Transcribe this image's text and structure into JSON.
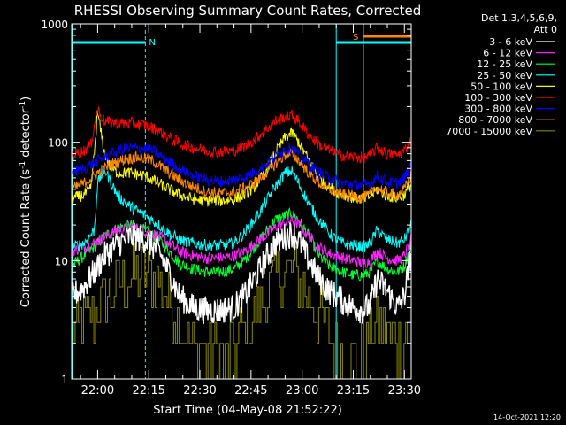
{
  "chart_data": {
    "type": "line",
    "title": "RHESSI Observing Summary Count Rates, Corrected",
    "xlabel": "Start Time (04-May-08 21:52:22)",
    "ylabel": "Corrected Count Rate (s⁻¹ detector⁻¹)",
    "ylabel_main": "Corrected Count Rate (s",
    "ylabel_sup1": "-1",
    "ylabel_mid": " detector",
    "ylabel_sup2": "-1",
    "ylabel_end": ")",
    "x_start_min": 1312.37,
    "x_end_min": 1412.0,
    "x_ticks": [
      {
        "min": 1320,
        "label": "22:00"
      },
      {
        "min": 1335,
        "label": "22:15"
      },
      {
        "min": 1350,
        "label": "22:30"
      },
      {
        "min": 1365,
        "label": "22:45"
      },
      {
        "min": 1380,
        "label": "23:00"
      },
      {
        "min": 1395,
        "label": "23:15"
      },
      {
        "min": 1410,
        "label": "23:30"
      }
    ],
    "y_scale": "log",
    "ylim": [
      1,
      1000
    ],
    "y_ticks": [
      {
        "v": 1,
        "label": "1"
      },
      {
        "v": 10,
        "label": "10"
      },
      {
        "v": 100,
        "label": "100"
      },
      {
        "v": 1000,
        "label": "1000"
      }
    ],
    "legend_header_1": "Det 1,3,4,5,6,9,",
    "legend_header_2": "Att 0",
    "legend_position": "right",
    "series": [
      {
        "name": "3 - 6 keV",
        "color": "#ffffff",
        "x": [
          1312.4,
          1316,
          1319,
          1322,
          1326,
          1330,
          1334,
          1338,
          1341,
          1344,
          1348,
          1352,
          1356,
          1360,
          1363,
          1366,
          1369,
          1372,
          1375,
          1377,
          1379,
          1382,
          1385,
          1388,
          1390,
          1392,
          1395,
          1398,
          1400,
          1402,
          1405,
          1408,
          1410,
          1412
        ],
        "values": [
          5,
          6,
          8,
          11,
          14,
          16,
          15,
          12,
          8,
          5,
          4,
          3.8,
          3.8,
          4,
          5,
          7,
          10,
          14,
          16,
          17,
          15,
          10,
          7,
          5.5,
          5,
          4.5,
          4,
          3.8,
          4.2,
          7,
          5.5,
          4,
          5,
          12
        ]
      },
      {
        "name": "6 - 12 keV",
        "color": "#ff22ff",
        "x": [
          1312.4,
          1316,
          1319,
          1322,
          1326,
          1330,
          1334,
          1338,
          1341,
          1344,
          1348,
          1352,
          1356,
          1360,
          1363,
          1366,
          1369,
          1372,
          1375,
          1377,
          1379,
          1382,
          1385,
          1388,
          1390,
          1392,
          1395,
          1398,
          1400,
          1402,
          1405,
          1408,
          1410,
          1412
        ],
        "values": [
          12,
          13,
          14,
          16,
          18,
          19,
          18,
          16,
          14,
          12,
          11,
          10.5,
          10.5,
          11,
          12,
          14,
          16,
          19,
          21,
          22,
          20,
          16,
          13,
          11.5,
          11,
          10.5,
          10,
          9.5,
          10,
          12,
          10.5,
          10,
          11,
          15
        ]
      },
      {
        "name": "12 - 25 keV",
        "color": "#00ff33",
        "x": [
          1312.4,
          1316,
          1319,
          1322,
          1326,
          1330,
          1334,
          1338,
          1341,
          1344,
          1348,
          1352,
          1356,
          1360,
          1363,
          1366,
          1369,
          1372,
          1375,
          1377,
          1379,
          1382,
          1385,
          1388,
          1390,
          1392,
          1395,
          1398,
          1400,
          1402,
          1405,
          1408,
          1410,
          1412
        ],
        "values": [
          9,
          11,
          13,
          16,
          19,
          20,
          18,
          15,
          12,
          9.5,
          8.5,
          8,
          8,
          8.5,
          10,
          13,
          17,
          22,
          24,
          25,
          22,
          16,
          11,
          9,
          8.5,
          8,
          7.5,
          7.5,
          8,
          10,
          8.5,
          8,
          9,
          14
        ]
      },
      {
        "name": "25 - 50 keV",
        "color": "#00ffff",
        "x": [
          1312.4,
          1316,
          1319,
          1320,
          1322,
          1324,
          1326,
          1330,
          1334,
          1338,
          1341,
          1344,
          1348,
          1352,
          1356,
          1360,
          1363,
          1366,
          1369,
          1372,
          1375,
          1377,
          1379,
          1382,
          1385,
          1388,
          1390,
          1392,
          1395,
          1398,
          1400,
          1402,
          1405,
          1408,
          1410,
          1412
        ],
        "values": [
          13,
          14,
          18,
          45,
          60,
          45,
          35,
          28,
          24,
          20,
          17,
          15,
          14,
          13.5,
          13.5,
          14,
          17,
          22,
          30,
          42,
          55,
          57,
          45,
          30,
          22,
          17,
          15,
          14,
          13.5,
          13,
          14,
          18,
          15,
          14,
          15,
          20
        ]
      },
      {
        "name": "50 - 100 keV",
        "color": "#ffff00",
        "x": [
          1312.4,
          1316,
          1318,
          1319,
          1320,
          1321,
          1322,
          1324,
          1326,
          1330,
          1334,
          1338,
          1341,
          1344,
          1348,
          1352,
          1356,
          1360,
          1363,
          1366,
          1369,
          1372,
          1375,
          1377,
          1379,
          1382,
          1385,
          1388,
          1390,
          1392,
          1395,
          1398,
          1400,
          1402,
          1405,
          1408,
          1410,
          1412
        ],
        "values": [
          33,
          36,
          40,
          80,
          180,
          120,
          80,
          60,
          55,
          55,
          52,
          45,
          40,
          36,
          33,
          32,
          32,
          33,
          36,
          42,
          55,
          80,
          110,
          120,
          100,
          70,
          50,
          42,
          38,
          36,
          34,
          33,
          35,
          40,
          35,
          34,
          36,
          45
        ]
      },
      {
        "name": "100 - 300 keV",
        "color": "#ff0000",
        "x": [
          1312.4,
          1316,
          1318,
          1319,
          1320,
          1322,
          1326,
          1330,
          1334,
          1338,
          1341,
          1344,
          1348,
          1352,
          1356,
          1360,
          1363,
          1366,
          1369,
          1372,
          1375,
          1377,
          1379,
          1382,
          1385,
          1388,
          1390,
          1392,
          1395,
          1398,
          1400,
          1402,
          1405,
          1408,
          1410,
          1412
        ],
        "values": [
          78,
          85,
          95,
          140,
          190,
          150,
          145,
          145,
          140,
          125,
          110,
          98,
          90,
          85,
          83,
          85,
          92,
          105,
          125,
          150,
          165,
          168,
          150,
          115,
          95,
          85,
          80,
          77,
          75,
          74,
          78,
          90,
          80,
          78,
          85,
          105
        ]
      },
      {
        "name": "300 - 800 keV",
        "color": "#0000ff",
        "x": [
          1312.4,
          1316,
          1320,
          1324,
          1328,
          1332,
          1336,
          1340,
          1344,
          1348,
          1352,
          1356,
          1360,
          1364,
          1368,
          1372,
          1375,
          1377,
          1379,
          1382,
          1385,
          1388,
          1390,
          1392,
          1395,
          1398,
          1400,
          1402,
          1405,
          1408,
          1410,
          1412
        ],
        "values": [
          55,
          60,
          70,
          80,
          88,
          90,
          85,
          72,
          60,
          52,
          48,
          47,
          48,
          52,
          60,
          75,
          88,
          90,
          80,
          65,
          55,
          50,
          47,
          45,
          44,
          43,
          45,
          52,
          46,
          45,
          50,
          65
        ]
      },
      {
        "name": "800 - 7000 keV",
        "color": "#ff8800",
        "x": [
          1312.4,
          1316,
          1320,
          1324,
          1328,
          1332,
          1336,
          1340,
          1344,
          1348,
          1352,
          1356,
          1360,
          1364,
          1368,
          1372,
          1375,
          1377,
          1379,
          1382,
          1385,
          1388,
          1390,
          1392,
          1395,
          1398,
          1400,
          1402,
          1405,
          1408,
          1410,
          1412
        ],
        "values": [
          40,
          45,
          55,
          65,
          72,
          75,
          70,
          58,
          48,
          42,
          38,
          37,
          38,
          42,
          50,
          65,
          78,
          80,
          70,
          55,
          45,
          40,
          38,
          36,
          35,
          34,
          36,
          42,
          37,
          36,
          40,
          52
        ]
      },
      {
        "name": "7000 - 15000 keV",
        "color": "#888800",
        "x": [
          1312.4,
          1316,
          1319,
          1322,
          1326,
          1330,
          1334,
          1338,
          1341,
          1344,
          1348,
          1352,
          1356,
          1360,
          1363,
          1366,
          1369,
          1372,
          1375,
          1377,
          1379,
          1382,
          1385,
          1388,
          1390,
          1392,
          1395,
          1398,
          1400,
          1402,
          1405,
          1408,
          1410,
          1412
        ],
        "values": [
          2.5,
          3,
          3.5,
          4.5,
          6,
          7.5,
          8,
          6.5,
          4.5,
          3,
          2,
          1.6,
          1.6,
          1.8,
          2.5,
          3.5,
          5,
          7,
          8,
          8,
          7,
          5,
          3.5,
          2.5,
          1.8,
          1.5,
          1.4,
          1.5,
          2,
          3,
          2.5,
          2,
          2.5,
          3.5
        ]
      }
    ],
    "annotations": {
      "night_bars": [
        {
          "label": "N",
          "color": "#00ffff",
          "x0": 1312.4,
          "x1": 1334.0
        },
        {
          "label": "",
          "color": "#00ffff",
          "x0": 1390.0,
          "x1": 1412.0
        }
      ],
      "saa_bars": [
        {
          "label": "S",
          "color": "#ff8800",
          "x0": 1398.0,
          "x1": 1412.0
        }
      ],
      "vlines_solid": [
        {
          "x": 1312.6,
          "color": "#00ffff"
        },
        {
          "x": 1390.0,
          "color": "#00ffff"
        },
        {
          "x": 1398.0,
          "color": "#ff8800"
        }
      ],
      "vlines_dashed": [
        {
          "x": 1334.0,
          "color": "#00ffff"
        },
        {
          "x": 1412.0,
          "color": "#ff8800"
        }
      ]
    },
    "footer": "14-Oct-2021 12:20"
  }
}
